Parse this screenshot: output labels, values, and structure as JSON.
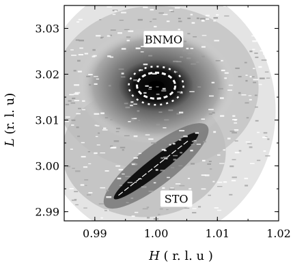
{
  "chart_data": {
    "type": "heatmap",
    "title": "",
    "xlabel_var": "H",
    "xlabel_unit": " ( r. l. u )",
    "ylabel_var": "L",
    "ylabel_unit": " (r. l. u)",
    "xlim": [
      0.985,
      1.02
    ],
    "ylim": [
      2.988,
      3.035
    ],
    "x_ticks": [
      0.99,
      1.0,
      1.01,
      1.02
    ],
    "x_tick_labels": [
      "0.99",
      "1.00",
      "1.01",
      "1.02"
    ],
    "y_ticks": [
      2.99,
      3.0,
      3.01,
      3.02,
      3.03
    ],
    "y_tick_labels": [
      "2.99",
      "3.00",
      "3.01",
      "3.02",
      "3.03"
    ],
    "grid": false,
    "annotations": [
      {
        "text": "BNMO",
        "x": 1.0012,
        "y": 3.0275
      },
      {
        "text": "STO",
        "x": 1.0033,
        "y": 2.9927
      }
    ],
    "peaks": [
      {
        "name": "BNMO",
        "H": 1.0,
        "L": 3.0175
      },
      {
        "name": "STO",
        "H": 1.0,
        "L": 3.0
      }
    ]
  }
}
